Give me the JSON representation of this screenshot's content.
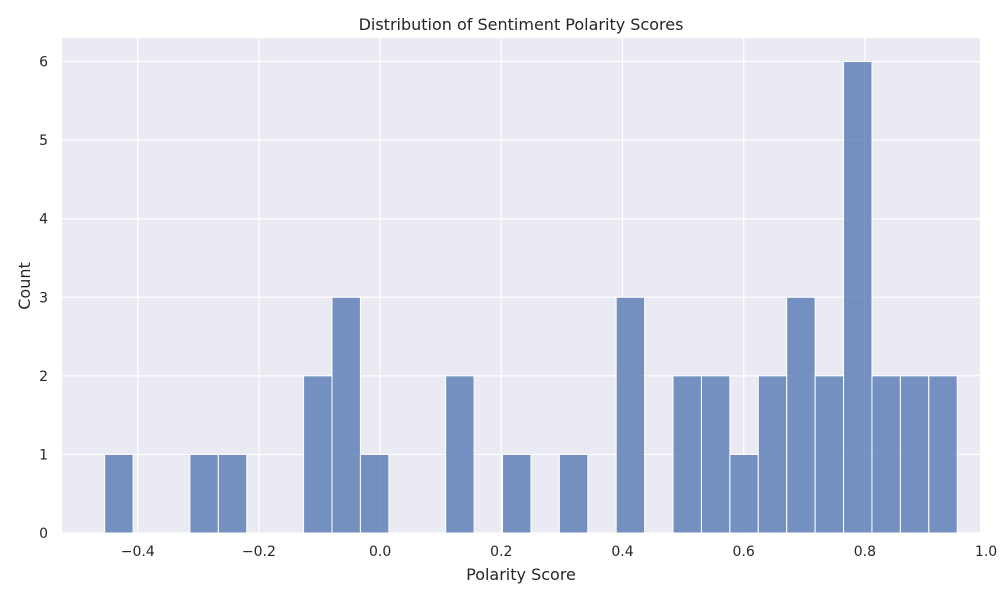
{
  "chart_data": {
    "type": "bar",
    "title": "Distribution of Sentiment Polarity Scores",
    "xlabel": "Polarity Score",
    "ylabel": "Count",
    "xlim": [
      -0.525,
      0.99
    ],
    "ylim": [
      0,
      6.3
    ],
    "xticks": [
      -0.4,
      -0.2,
      0.0,
      0.2,
      0.4,
      0.6,
      0.8,
      1.0
    ],
    "xtick_labels": [
      "−0.4",
      "−0.2",
      "0.0",
      "0.2",
      "0.4",
      "0.6",
      "0.8",
      "1.0"
    ],
    "yticks": [
      0,
      1,
      2,
      3,
      4,
      5,
      6
    ],
    "ytick_labels": [
      "0",
      "1",
      "2",
      "3",
      "4",
      "5",
      "6"
    ],
    "grid": true,
    "bin_width": 0.0469,
    "bins": [
      {
        "x0": -0.4546,
        "x1": -0.4077,
        "count": 1
      },
      {
        "x0": -0.4077,
        "x1": -0.3608,
        "count": 0
      },
      {
        "x0": -0.3608,
        "x1": -0.3139,
        "count": 0
      },
      {
        "x0": -0.3139,
        "x1": -0.267,
        "count": 1
      },
      {
        "x0": -0.267,
        "x1": -0.2201,
        "count": 1
      },
      {
        "x0": -0.2201,
        "x1": -0.1732,
        "count": 0
      },
      {
        "x0": -0.1732,
        "x1": -0.1263,
        "count": 0
      },
      {
        "x0": -0.1263,
        "x1": -0.0794,
        "count": 2
      },
      {
        "x0": -0.0794,
        "x1": -0.0325,
        "count": 3
      },
      {
        "x0": -0.0325,
        "x1": 0.0144,
        "count": 1
      },
      {
        "x0": 0.0144,
        "x1": 0.0613,
        "count": 0
      },
      {
        "x0": 0.0613,
        "x1": 0.1082,
        "count": 0
      },
      {
        "x0": 0.1082,
        "x1": 0.1551,
        "count": 2
      },
      {
        "x0": 0.1551,
        "x1": 0.202,
        "count": 0
      },
      {
        "x0": 0.202,
        "x1": 0.2489,
        "count": 1
      },
      {
        "x0": 0.2489,
        "x1": 0.2958,
        "count": 0
      },
      {
        "x0": 0.2958,
        "x1": 0.3427,
        "count": 1
      },
      {
        "x0": 0.3427,
        "x1": 0.3896,
        "count": 0
      },
      {
        "x0": 0.3896,
        "x1": 0.4365,
        "count": 3
      },
      {
        "x0": 0.4365,
        "x1": 0.4834,
        "count": 0
      },
      {
        "x0": 0.4834,
        "x1": 0.5303,
        "count": 2
      },
      {
        "x0": 0.5303,
        "x1": 0.5772,
        "count": 2
      },
      {
        "x0": 0.5772,
        "x1": 0.6241,
        "count": 1
      },
      {
        "x0": 0.6241,
        "x1": 0.671,
        "count": 2
      },
      {
        "x0": 0.671,
        "x1": 0.7179,
        "count": 3
      },
      {
        "x0": 0.7179,
        "x1": 0.7648,
        "count": 2
      },
      {
        "x0": 0.7648,
        "x1": 0.8117,
        "count": 6
      },
      {
        "x0": 0.8117,
        "x1": 0.8586,
        "count": 2
      },
      {
        "x0": 0.8586,
        "x1": 0.9055,
        "count": 2
      },
      {
        "x0": 0.9055,
        "x1": 0.9524,
        "count": 2
      }
    ],
    "bar_color": "#4c72b0",
    "background_color": "#eaeaf2",
    "grid_color": "#ffffff"
  }
}
